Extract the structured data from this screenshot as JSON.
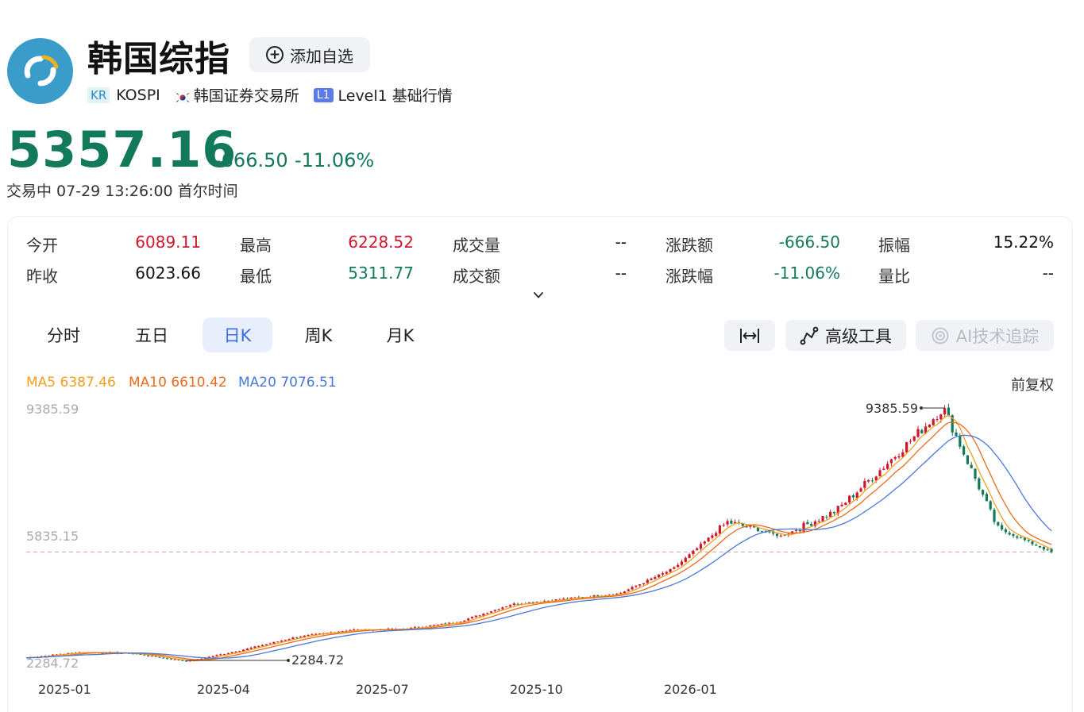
{
  "header": {
    "title": "韩国综指",
    "add_label": "添加自选",
    "tag_market": "KR",
    "symbol": "KOSPI",
    "exchange": "韩国证券交易所",
    "level_tag": "L1",
    "level_label": "Level1 基础行情"
  },
  "quote": {
    "price": "5357.16",
    "change": "-666.50",
    "change_pct": "-11.06%",
    "status": "交易中 07-29 13:26:00 首尔时间"
  },
  "stats": [
    {
      "label": "今开",
      "value": "6089.11",
      "tone": "red"
    },
    {
      "label": "最高",
      "value": "6228.52",
      "tone": "red"
    },
    {
      "label": "成交量",
      "value": "--",
      "tone": "black"
    },
    {
      "label": "涨跌额",
      "value": "-666.50",
      "tone": "green"
    },
    {
      "label": "振幅",
      "value": "15.22%",
      "tone": "black"
    },
    {
      "label": "昨收",
      "value": "6023.66",
      "tone": "black"
    },
    {
      "label": "最低",
      "value": "5311.77",
      "tone": "green"
    },
    {
      "label": "成交额",
      "value": "--",
      "tone": "black"
    },
    {
      "label": "涨跌幅",
      "value": "-11.06%",
      "tone": "green"
    },
    {
      "label": "量比",
      "value": "--",
      "tone": "black"
    }
  ],
  "tabs": [
    "分时",
    "五日",
    "日K",
    "周K",
    "月K"
  ],
  "active_tab": "日K",
  "tools": {
    "advanced": "高级工具",
    "ai": "AI技术追踪"
  },
  "legend": {
    "ma5": "MA5 6387.46",
    "ma10": "MA10 6610.42",
    "ma20": "MA20 7076.51",
    "adjust": "前复权"
  },
  "colors": {
    "up": "#d0162c",
    "down": "#127a5a",
    "ma5": "#f0a020",
    "ma10": "#ea6b1c",
    "ma20": "#4a78d8",
    "accent": "#3c6ee0"
  },
  "chart_data": {
    "type": "candlestick",
    "title": "",
    "x_tick_labels": [
      "2025-01",
      "2025-04",
      "2025-07",
      "2025-10",
      "2026-01"
    ],
    "y_tick_labels": [
      "9385.59",
      "5835.15",
      "2284.72"
    ],
    "ylim": [
      2284.72,
      9385.59
    ],
    "max_label": "9385.59",
    "min_label": "2284.72",
    "last_close": 5357.16,
    "close_series": [
      [
        "2025-01",
        2400
      ],
      [
        "2025-02",
        2560
      ],
      [
        "2025-03",
        2520
      ],
      [
        "2025-04",
        2300
      ],
      [
        "2025-05",
        2620
      ],
      [
        "2025-06",
        2980
      ],
      [
        "2025-07",
        3180
      ],
      [
        "2025-08",
        3200
      ],
      [
        "2025-09",
        3400
      ],
      [
        "2025-10",
        3900
      ],
      [
        "2025-11",
        4050
      ],
      [
        "2025-12",
        4200
      ],
      [
        "2026-01",
        4900
      ],
      [
        "2026-02",
        6200
      ],
      [
        "2026-03",
        5800
      ],
      [
        "2026-04",
        6500
      ],
      [
        "2026-05",
        7900
      ],
      [
        "2026-06",
        9385.59
      ],
      [
        "2026-07",
        6023.66
      ],
      [
        "2026-07-29",
        5357.16
      ]
    ]
  }
}
